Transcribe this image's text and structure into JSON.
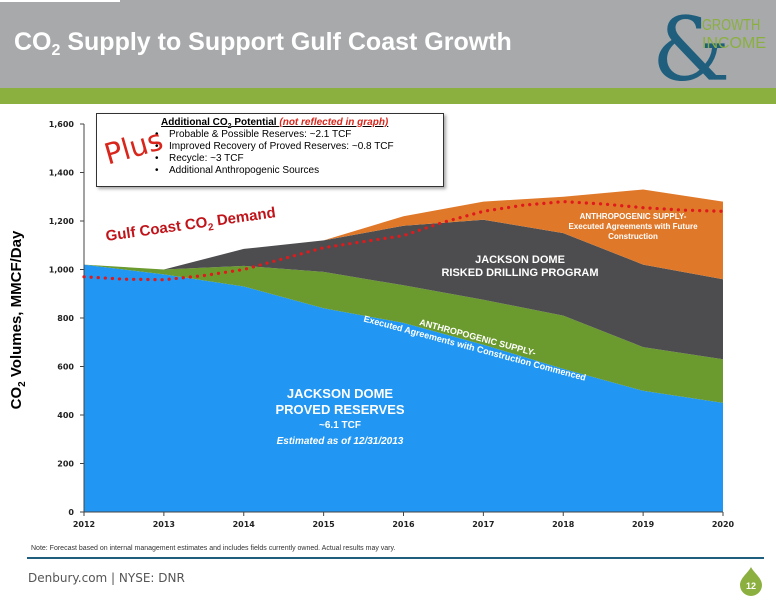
{
  "slide": {
    "title_pre": "CO",
    "title_sub": "2",
    "title_post": " Supply to Support Gulf Coast Growth",
    "logo": {
      "symbol": "&",
      "line1": "GROWTH",
      "line2": "INCOME"
    },
    "plus_text": "Plus",
    "demand_pre": "Gulf Coast CO",
    "demand_sub": "2",
    "demand_post": " Demand",
    "note": "Note: Forecast based on internal management estimates and includes fields currently owned.  Actual results may vary.",
    "footer": "Denbury.com | NYSE: DNR",
    "page_number": "12"
  },
  "callout": {
    "title_pre": "Additional CO",
    "title_sub": "2",
    "title_mid": " Potential ",
    "title_red": "(not reflected in graph)",
    "items": [
      "Probable & Possible Reserves: ~2.1 TCF",
      "Improved Recovery of Proved Reserves: ~0.8 TCF",
      "Recycle: ~3 TCF",
      "Additional Anthropogenic Sources"
    ]
  },
  "labels": {
    "proved_line1": "JACKSON DOME",
    "proved_line2": "PROVED RESERVES",
    "proved_line3": "~6.1 TCF",
    "proved_line4": "Estimated as of 12/31/2013",
    "risked_line1": "JACKSON DOME",
    "risked_line2": "RISKED DRILLING PROGRAM",
    "anth_future_line1": "ANTHROPOGENIC SUPPLY-",
    "anth_future_line2": "Executed  Agreements with Future",
    "anth_future_line3": "Construction",
    "anth_exec_line1": "ANTHROPOGENIC SUPPLY-",
    "anth_exec_line2": "Executed Agreements  with Construction Commenced"
  },
  "colors": {
    "proved": "#2196f3",
    "anthro_exec": "#6b9a2e",
    "risked": "#4d4d4f",
    "anthro_future": "#e0782a",
    "demand": "#e0191c",
    "header_gray": "#a7a9ab",
    "header_green": "#8cb040",
    "logo_blue": "#1f5f7d",
    "logo_green": "#8cb040"
  },
  "chart_data": {
    "type": "area",
    "stacked": true,
    "ylabel_pre": "CO",
    "ylabel_sub": "2",
    "ylabel_post": " Volumes, MMCF/Day",
    "x": [
      2012,
      2013,
      2014,
      2015,
      2016,
      2017,
      2018,
      2019,
      2020
    ],
    "x_tick_labels": [
      "2012",
      "2013",
      "2014",
      "2015",
      "2016",
      "2017",
      "2018",
      "2019",
      "2020"
    ],
    "ylim": [
      0,
      1600
    ],
    "y_ticks": [
      0,
      200,
      400,
      600,
      800,
      1000,
      1200,
      1400,
      1600
    ],
    "y_tick_labels": [
      "0",
      "200",
      "400",
      "600",
      "800",
      "1,000",
      "1,200",
      "1,400",
      "1,600"
    ],
    "series": [
      {
        "key": "proved",
        "values": [
          1020,
          980,
          930,
          840,
          780,
          690,
          590,
          500,
          450
        ]
      },
      {
        "key": "anthro_exec",
        "values": [
          0,
          20,
          85,
          150,
          155,
          185,
          220,
          180,
          180
        ]
      },
      {
        "key": "risked",
        "values": [
          0,
          0,
          70,
          130,
          245,
          330,
          340,
          340,
          330
        ]
      },
      {
        "key": "anthro_future",
        "values": [
          0,
          0,
          0,
          0,
          40,
          75,
          150,
          310,
          320
        ]
      }
    ],
    "demand": {
      "x": [
        2012,
        2012.5,
        2013,
        2013.5,
        2014,
        2014.5,
        2015,
        2015.5,
        2016,
        2016.5,
        2017,
        2017.5,
        2018,
        2018.5,
        2019,
        2019.5,
        2020
      ],
      "values": [
        970,
        960,
        958,
        975,
        1000,
        1045,
        1090,
        1115,
        1140,
        1195,
        1240,
        1265,
        1280,
        1270,
        1255,
        1245,
        1240
      ]
    },
    "grid": false
  }
}
